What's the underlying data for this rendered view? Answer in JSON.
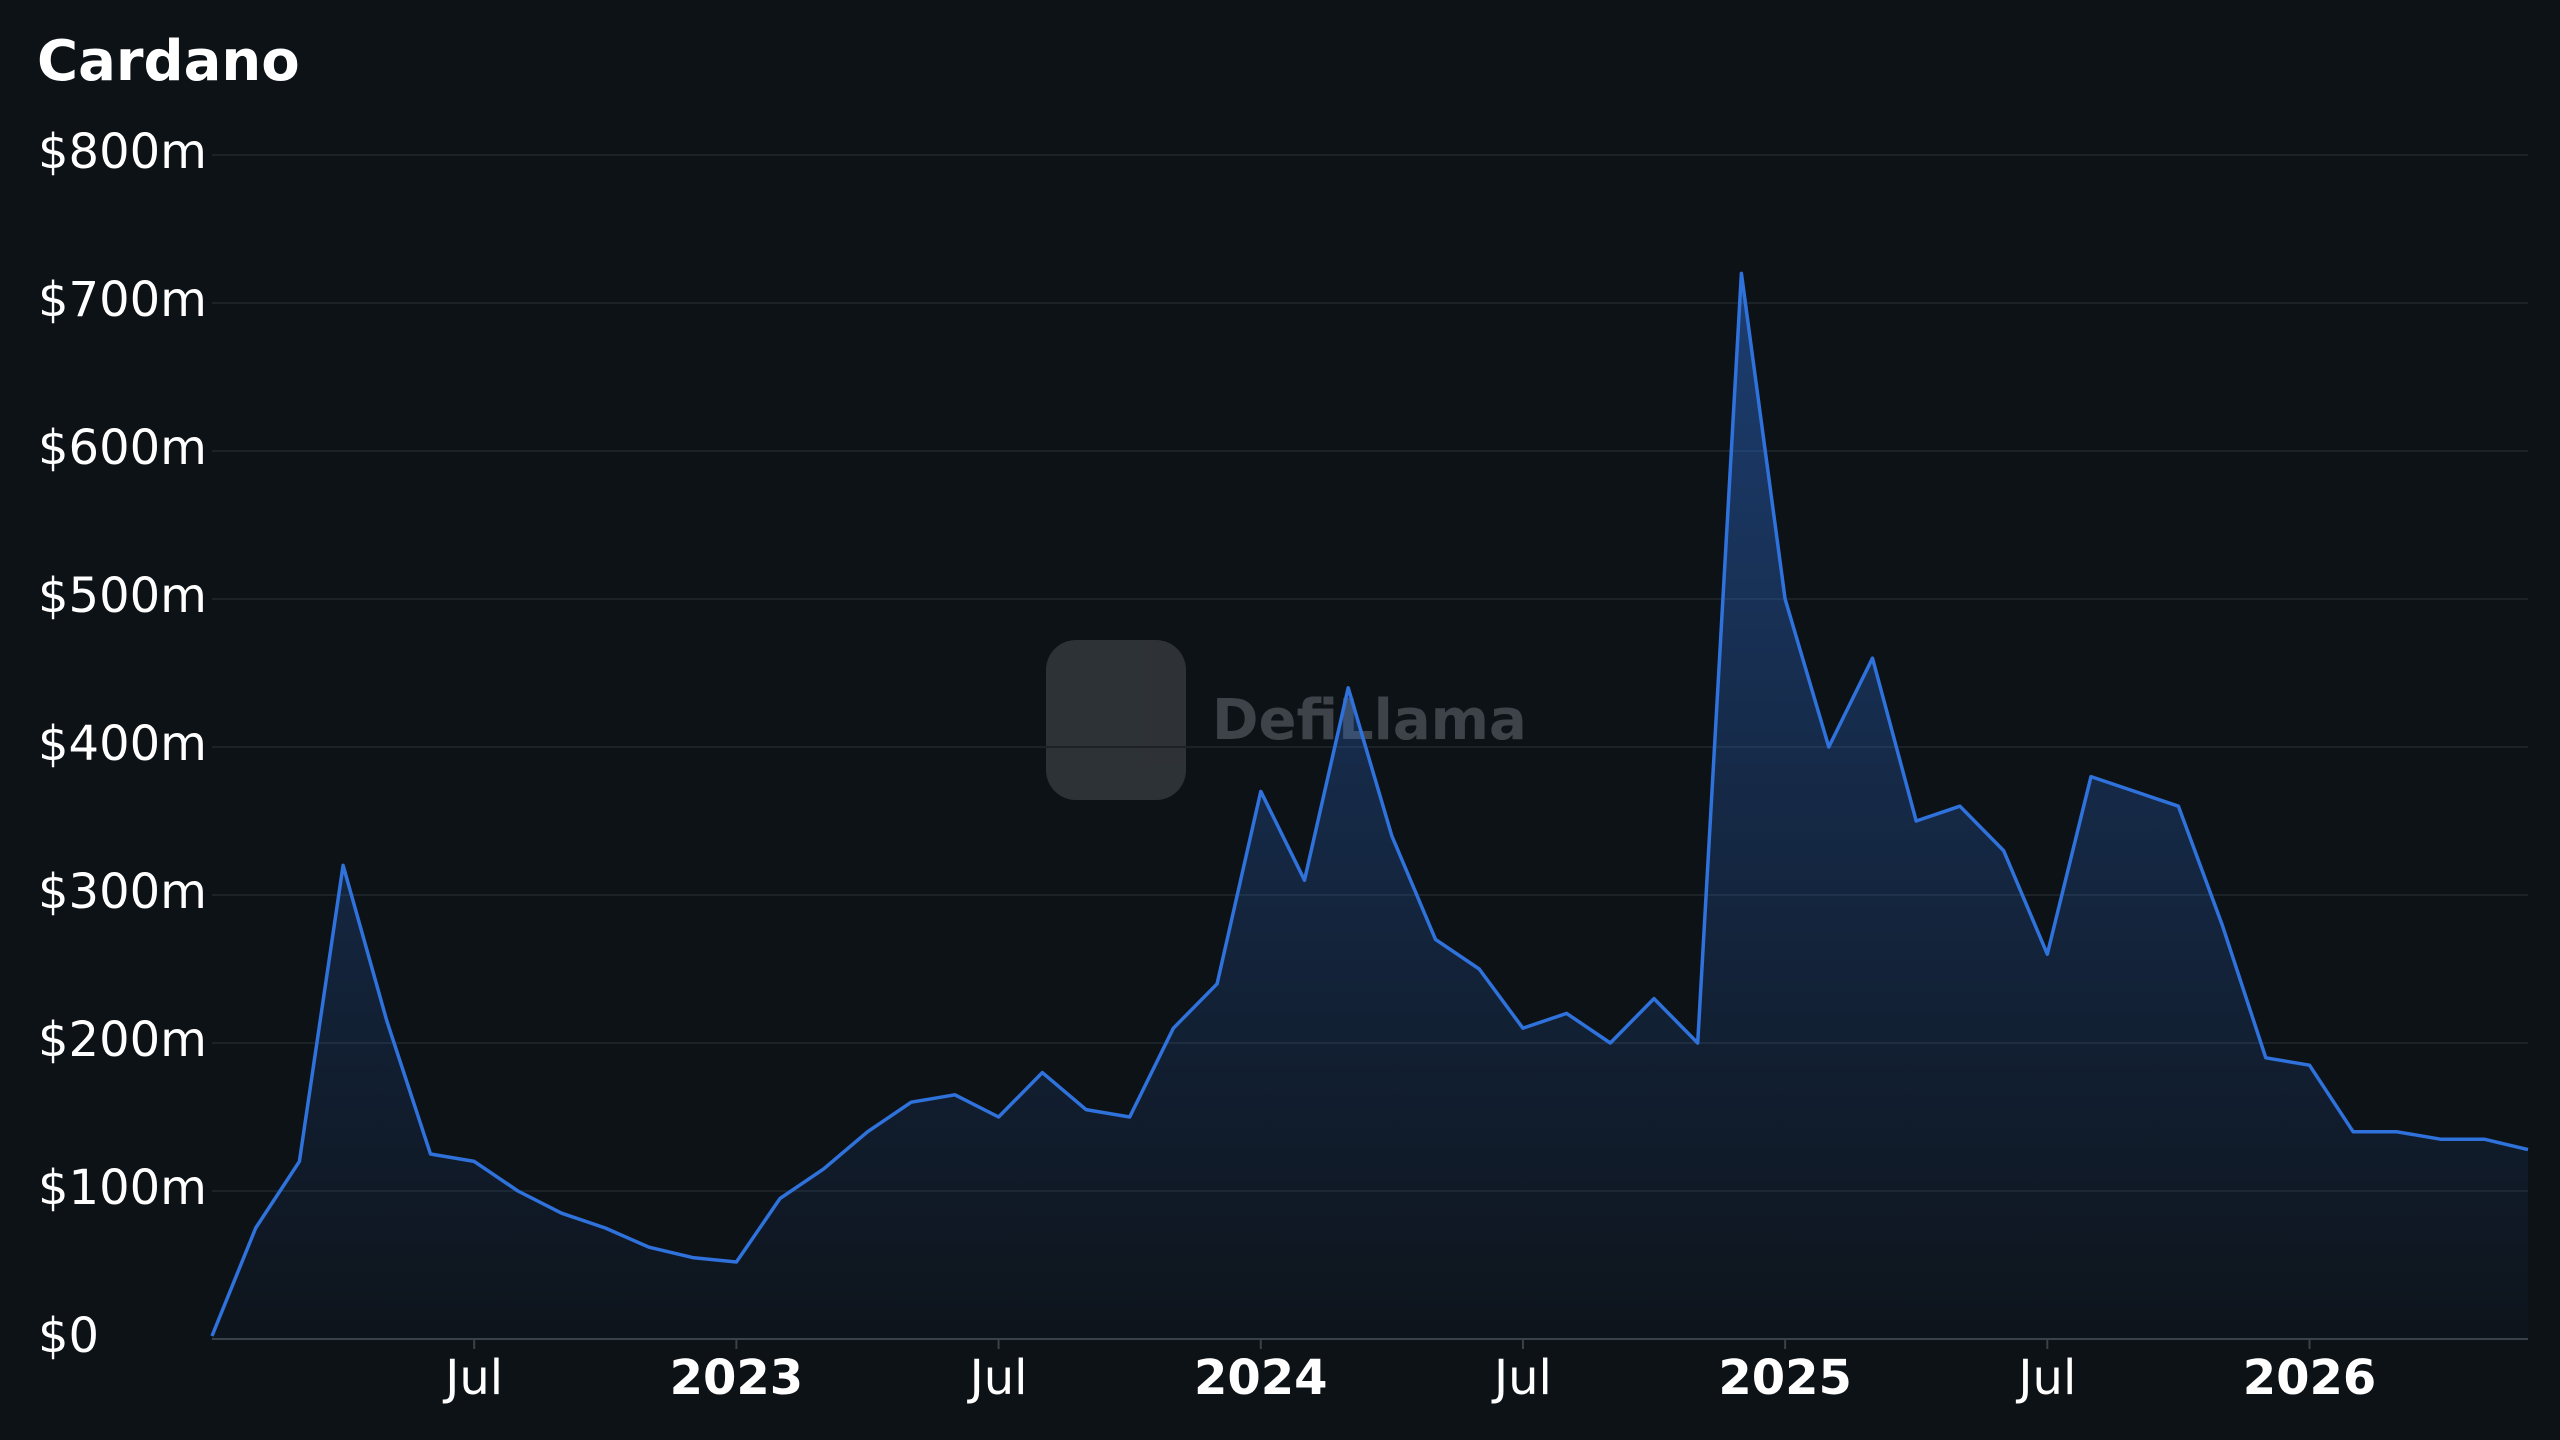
{
  "chart_data": {
    "type": "line",
    "title": "Cardano",
    "watermark": "DefiLlama",
    "x": [
      "2022-01",
      "2022-02",
      "2022-03",
      "2022-04",
      "2022-05",
      "2022-06",
      "2022-07",
      "2022-08",
      "2022-09",
      "2022-10",
      "2022-11",
      "2022-12",
      "2023-01",
      "2023-02",
      "2023-03",
      "2023-04",
      "2023-05",
      "2023-06",
      "2023-07",
      "2023-08",
      "2023-09",
      "2023-10",
      "2023-11",
      "2023-12",
      "2024-01",
      "2024-02",
      "2024-03",
      "2024-04",
      "2024-05",
      "2024-06",
      "2024-07",
      "2024-08",
      "2024-09",
      "2024-10",
      "2024-11",
      "2024-12",
      "2025-01",
      "2025-02",
      "2025-03",
      "2025-04",
      "2025-05",
      "2025-06",
      "2025-07",
      "2025-08",
      "2025-09",
      "2025-10",
      "2025-11",
      "2025-12",
      "2026-01",
      "2026-02",
      "2026-03",
      "2026-04",
      "2026-05",
      "2026-06"
    ],
    "series": [
      {
        "name": "Cardano",
        "color": "#2f72dc",
        "values": [
          2,
          75,
          120,
          320,
          215,
          125,
          120,
          100,
          85,
          75,
          62,
          55,
          52,
          95,
          115,
          140,
          160,
          165,
          150,
          180,
          155,
          150,
          210,
          240,
          370,
          310,
          440,
          340,
          270,
          250,
          210,
          220,
          200,
          230,
          200,
          720,
          500,
          400,
          460,
          350,
          360,
          330,
          260,
          380,
          370,
          360,
          280,
          190,
          185,
          140,
          140,
          135,
          135,
          128
        ]
      }
    ],
    "xlim": [
      "2022-01",
      "2026-06"
    ],
    "xticks": [
      {
        "value": "2022-07",
        "label": "Jul"
      },
      {
        "value": "2023-01",
        "label": "2023"
      },
      {
        "value": "2023-07",
        "label": "Jul"
      },
      {
        "value": "2024-01",
        "label": "2024"
      },
      {
        "value": "2024-07",
        "label": "Jul"
      },
      {
        "value": "2025-01",
        "label": "2025"
      },
      {
        "value": "2025-07",
        "label": "Jul"
      },
      {
        "value": "2026-01",
        "label": "2026"
      }
    ],
    "ylim": [
      0,
      800
    ],
    "yticks": [
      {
        "value": 0,
        "label": "$0"
      },
      {
        "value": 100,
        "label": "$100m"
      },
      {
        "value": 200,
        "label": "$200m"
      },
      {
        "value": 300,
        "label": "$300m"
      },
      {
        "value": 400,
        "label": "$400m"
      },
      {
        "value": 500,
        "label": "$500m"
      },
      {
        "value": 600,
        "label": "$600m"
      },
      {
        "value": 700,
        "label": "$700m"
      },
      {
        "value": 800,
        "label": "$800m"
      }
    ],
    "grid": true
  }
}
